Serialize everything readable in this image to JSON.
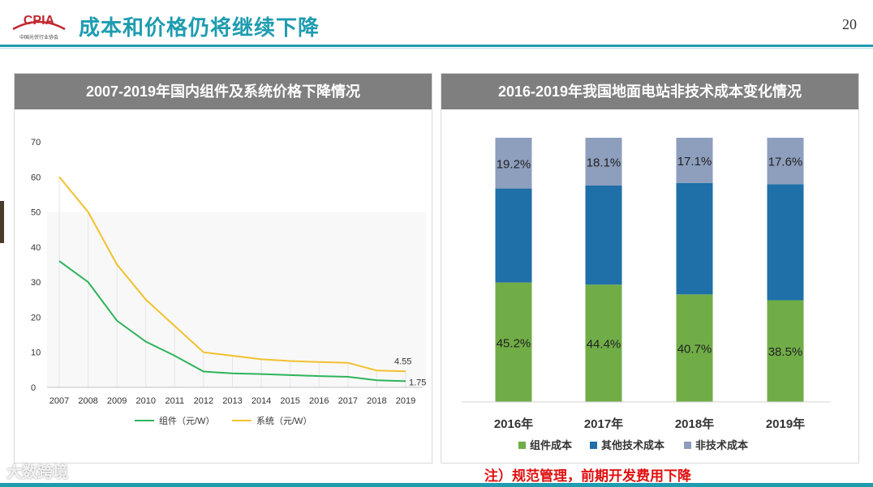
{
  "header": {
    "title": "成本和价格仍将继续下降",
    "page_number": "20",
    "logo_text": "CPIA",
    "logo_subtext": "中国光伏行业协会"
  },
  "left_panel": {
    "title": "2007-2019年国内组件及系统价格下降情况"
  },
  "right_panel": {
    "title": "2016-2019年我国地面电站非技术成本变化情况"
  },
  "footer": {
    "note": "注）规范管理，前期开发费用下降",
    "watermark": "大数跨境"
  },
  "colors": {
    "accent": "#1E9CB0",
    "green": "#70AD47",
    "dark_blue": "#1F6FA8",
    "gray_blue": "#8E9EBD",
    "yellow": "#F2C12E",
    "line_green": "#2DB45A",
    "note_red": "#E01010"
  },
  "chart_data": [
    {
      "type": "line",
      "title": "2007-2019年国内组件及系统价格下降情况",
      "x": [
        "2007",
        "2008",
        "2009",
        "2010",
        "2011",
        "2012",
        "2013",
        "2014",
        "2015",
        "2016",
        "2017",
        "2018",
        "2019"
      ],
      "ylim": [
        0,
        70
      ],
      "yticks": [
        0,
        10,
        20,
        30,
        40,
        50,
        60,
        70
      ],
      "series": [
        {
          "name": "组件（元/W）",
          "color": "#2DB45A",
          "values": [
            36,
            30,
            19,
            13,
            9,
            4.5,
            4,
            3.8,
            3.5,
            3.2,
            3.0,
            2.0,
            1.75
          ]
        },
        {
          "name": "系统（元/W）",
          "color": "#F2C12E",
          "values": [
            60,
            50,
            35,
            25,
            17.5,
            10,
            9,
            8,
            7.5,
            7.2,
            7.0,
            4.8,
            4.55
          ]
        }
      ],
      "end_labels": [
        "1.75",
        "4.55"
      ],
      "legend": "bottom",
      "grid": false
    },
    {
      "type": "bar",
      "stacked": true,
      "percent": true,
      "title": "2016-2019年我国地面电站非技术成本变化情况",
      "categories": [
        "2016年",
        "2017年",
        "2018年",
        "2019年"
      ],
      "series": [
        {
          "name": "组件成本",
          "color": "#70AD47",
          "values": [
            45.2,
            44.4,
            40.7,
            38.5
          ],
          "labels": [
            "45.2%",
            "44.4%",
            "40.7%",
            "38.5%"
          ]
        },
        {
          "name": "其他技术成本",
          "color": "#1F6FA8",
          "values": [
            35.6,
            37.5,
            42.2,
            43.9
          ],
          "labels": [
            "",
            "",
            "",
            ""
          ]
        },
        {
          "name": "非技术成本",
          "color": "#8E9EBD",
          "values": [
            19.2,
            18.1,
            17.1,
            17.6
          ],
          "labels": [
            "19.2%",
            "18.1%",
            "17.1%",
            "17.6%"
          ]
        }
      ],
      "ylim": [
        0,
        100
      ],
      "legend": "bottom"
    }
  ]
}
